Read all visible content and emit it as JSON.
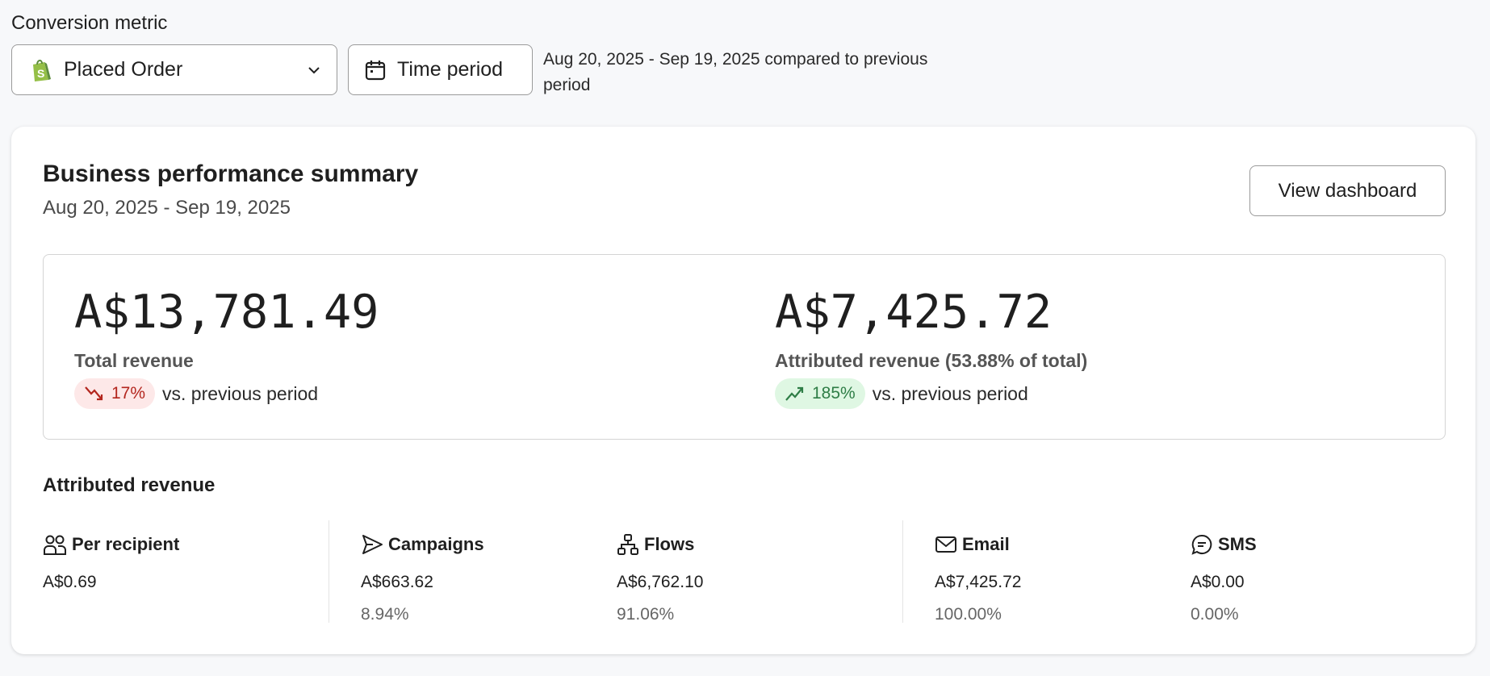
{
  "header": {
    "conversion_label": "Conversion metric",
    "metric_value": "Placed Order",
    "time_period_label": "Time period",
    "comparison_text": "Aug 20, 2025 - Sep 19, 2025 compared to previous period"
  },
  "card": {
    "title": "Business performance summary",
    "date_range": "Aug 20, 2025 - Sep 19, 2025",
    "view_dashboard": "View dashboard",
    "total": {
      "value": "A$13,781.49",
      "label": "Total revenue",
      "change": "17%",
      "direction": "down",
      "suffix": "vs. previous period"
    },
    "attributed": {
      "value": "A$7,425.72",
      "label": "Attributed revenue (53.88% of total)",
      "change": "185%",
      "direction": "up",
      "suffix": "vs. previous period"
    },
    "section_title": "Attributed revenue",
    "columns": [
      {
        "icon": "users-icon",
        "label": "Per recipient",
        "value": "A$0.69"
      },
      {
        "icon": "send-icon",
        "label": "Campaigns",
        "value": "A$663.62",
        "pct": "8.94%"
      },
      {
        "icon": "flow-icon",
        "label": "Flows",
        "value": "A$6,762.10",
        "pct": "91.06%"
      },
      {
        "icon": "mail-icon",
        "label": "Email",
        "value": "A$7,425.72",
        "pct": "100.00%"
      },
      {
        "icon": "chat-icon",
        "label": "SMS",
        "value": "A$0.00",
        "pct": "0.00%"
      }
    ]
  },
  "colors": {
    "down_bg": "#fde8e8",
    "down_fg": "#b3261e",
    "up_bg": "#dff7e3",
    "up_fg": "#2e7d46",
    "shopify": "#95bf47"
  }
}
